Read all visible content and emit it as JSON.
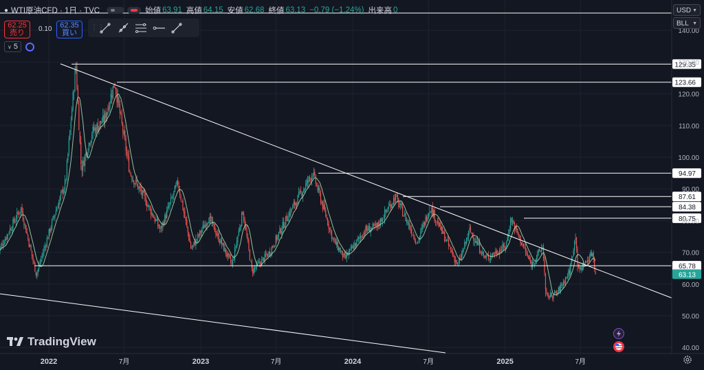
{
  "header": {
    "symbol": "WTI原油CFD · 1日 · TVC",
    "open_label": "始値",
    "open": "63.91",
    "high_label": "高値",
    "high": "64.15",
    "low_label": "安値",
    "low": "62.68",
    "close_label": "終値",
    "close": "63.13",
    "change": "−0.79 (−1.24%)",
    "volume_label": "出来高",
    "volume": "0"
  },
  "trade": {
    "sell_price": "62.25",
    "sell_label": "売り",
    "spread": "0.10",
    "buy_price": "62.35",
    "buy_label": "買い"
  },
  "indicator": {
    "count": "5"
  },
  "axis": {
    "currency": "USD",
    "unit": "BLL"
  },
  "branding": {
    "logo_text": "TradingView"
  },
  "colors": {
    "background": "#131722",
    "up": "#26a69a",
    "down": "#ef5350",
    "ma": "#a5d6a7",
    "line": "#ffffff",
    "current_price_bg": "#26a69a"
  },
  "icons": [
    "draw-line-icon",
    "ray-icon",
    "fib-icon",
    "horizontal-ray-icon",
    "trend-angle-icon",
    "lightning-icon",
    "us-flag-icon",
    "settings-gear-icon"
  ],
  "chart_data": {
    "type": "candlestick",
    "y_ticks": [
      40,
      50,
      60,
      70,
      80,
      90,
      100,
      110,
      120,
      130,
      140
    ],
    "y_tick_labels": [
      "40.00",
      "50.00",
      "60.00",
      "70.00",
      "80.00",
      "90.00",
      "100.00",
      "110.00",
      "120.00",
      "130.00",
      "140.00"
    ],
    "ylim": [
      37.5,
      146
    ],
    "x_ticks": [
      "2022",
      "7月",
      "2023",
      "7月",
      "2024",
      "7月",
      "2025",
      "7月"
    ],
    "horizontal_levels": [
      129.35,
      123.66,
      94.97,
      87.61,
      84.38,
      80.75,
      65.78
    ],
    "horizontal_level_labels": [
      "129.35",
      "123.66",
      "94.97",
      "87.61",
      "84.38",
      "80.75",
      "65.78"
    ],
    "current_price": 63.13,
    "current_price_label": "63.13",
    "price_path": [
      [
        "2021-09-01",
        70
      ],
      [
        "2021-10-26",
        84
      ],
      [
        "2021-12-02",
        63
      ],
      [
        "2022-01-15",
        82
      ],
      [
        "2022-02-10",
        92
      ],
      [
        "2022-03-07",
        129.35
      ],
      [
        "2022-03-20",
        96
      ],
      [
        "2022-04-15",
        108
      ],
      [
        "2022-05-15",
        112
      ],
      [
        "2022-06-08",
        123.66
      ],
      [
        "2022-07-15",
        95
      ],
      [
        "2022-08-15",
        88
      ],
      [
        "2022-09-26",
        77
      ],
      [
        "2022-11-07",
        92
      ],
      [
        "2022-12-09",
        71
      ],
      [
        "2023-01-20",
        81
      ],
      [
        "2023-03-17",
        66
      ],
      [
        "2023-04-12",
        83
      ],
      [
        "2023-05-04",
        64
      ],
      [
        "2023-06-15",
        70
      ],
      [
        "2023-07-31",
        82
      ],
      [
        "2023-09-27",
        94.97
      ],
      [
        "2023-11-15",
        74
      ],
      [
        "2023-12-13",
        68
      ],
      [
        "2024-01-31",
        77
      ],
      [
        "2024-02-28",
        78
      ],
      [
        "2024-04-12",
        87.61
      ],
      [
        "2024-06-04",
        73
      ],
      [
        "2024-07-05",
        84.38
      ],
      [
        "2024-09-10",
        65.78
      ],
      [
        "2024-10-08",
        77
      ],
      [
        "2024-11-15",
        68
      ],
      [
        "2025-01-03",
        72
      ],
      [
        "2025-01-15",
        80.75
      ],
      [
        "2025-03-05",
        66
      ],
      [
        "2025-04-02",
        72
      ],
      [
        "2025-04-09",
        56
      ],
      [
        "2025-05-05",
        57
      ],
      [
        "2025-06-05",
        64
      ],
      [
        "2025-06-20",
        76
      ],
      [
        "2025-06-25",
        64
      ],
      [
        "2025-07-15",
        67
      ],
      [
        "2025-07-30",
        70
      ],
      [
        "2025-08-07",
        63.13
      ]
    ]
  }
}
